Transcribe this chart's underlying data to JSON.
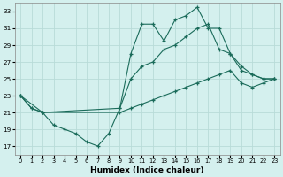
{
  "xlabel": "Humidex (Indice chaleur)",
  "bg_color": "#d4f0ee",
  "grid_color": "#b8dbd8",
  "line_color": "#1a6b5a",
  "xlim": [
    -0.5,
    23.5
  ],
  "ylim": [
    16.0,
    34.0
  ],
  "yticks": [
    17,
    19,
    21,
    23,
    25,
    27,
    29,
    31,
    33
  ],
  "xticks": [
    0,
    1,
    2,
    3,
    4,
    5,
    6,
    7,
    8,
    9,
    10,
    11,
    12,
    13,
    14,
    15,
    16,
    17,
    18,
    19,
    20,
    21,
    22,
    23
  ],
  "line1_x": [
    0,
    1,
    2,
    3,
    4,
    5,
    6,
    7,
    8,
    9,
    10,
    11,
    12,
    13,
    14,
    15,
    16,
    17,
    18,
    19,
    20,
    21,
    22,
    23
  ],
  "line1_y": [
    23.0,
    21.5,
    21.0,
    19.5,
    19.0,
    18.5,
    17.5,
    17.0,
    18.5,
    21.5,
    28.0,
    31.5,
    31.5,
    29.5,
    32.0,
    32.5,
    33.5,
    31.0,
    31.0,
    28.0,
    26.0,
    25.5,
    25.0,
    25.0
  ],
  "line2_x": [
    0,
    2,
    9,
    10,
    11,
    12,
    13,
    14,
    15,
    16,
    17,
    18,
    19,
    20,
    21,
    22,
    23
  ],
  "line2_y": [
    23.0,
    21.0,
    21.5,
    25.0,
    26.5,
    27.0,
    28.5,
    29.0,
    30.0,
    31.0,
    31.5,
    28.5,
    28.0,
    26.5,
    25.5,
    25.0,
    25.0
  ],
  "line3_x": [
    0,
    1,
    2,
    9,
    10,
    11,
    12,
    13,
    14,
    15,
    16,
    17,
    18,
    19,
    20,
    21,
    22,
    23
  ],
  "line3_y": [
    23.0,
    21.5,
    21.0,
    21.0,
    21.5,
    22.0,
    22.5,
    23.0,
    23.5,
    24.0,
    24.5,
    25.0,
    25.5,
    26.0,
    24.5,
    24.0,
    24.5,
    25.0
  ]
}
